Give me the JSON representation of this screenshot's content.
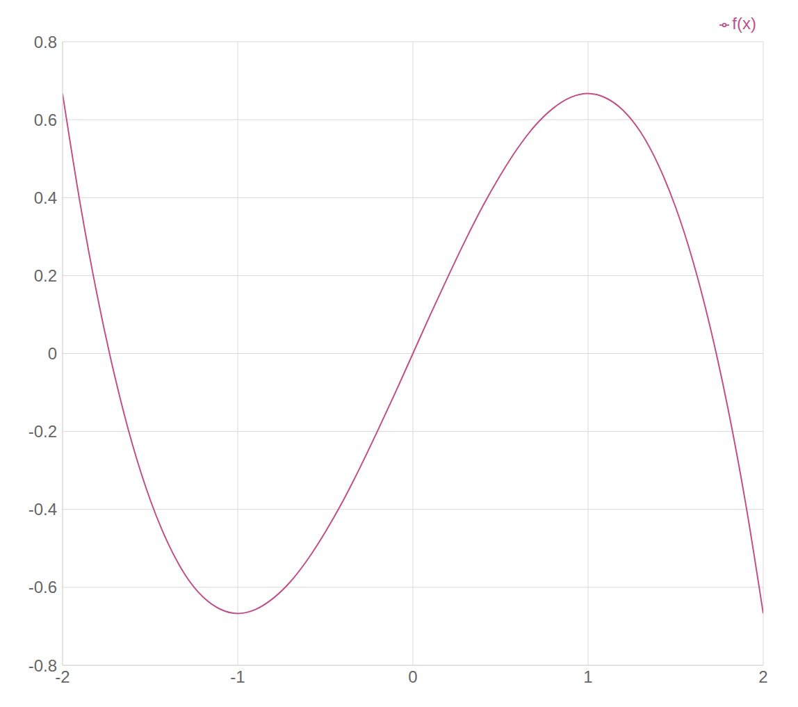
{
  "chart_data": {
    "type": "line",
    "x": [
      -2,
      -1.9,
      -1.8,
      -1.7,
      -1.6,
      -1.5,
      -1.4,
      -1.3,
      -1.2,
      -1.1,
      -1,
      -0.9,
      -0.8,
      -0.7,
      -0.6,
      -0.5,
      -0.4,
      -0.3,
      -0.2,
      -0.1,
      0,
      0.1,
      0.2,
      0.3,
      0.4,
      0.5,
      0.6,
      0.7,
      0.8,
      0.9,
      1,
      1.1,
      1.2,
      1.3,
      1.4,
      1.5,
      1.6,
      1.7,
      1.8,
      1.9,
      2
    ],
    "series": [
      {
        "name": "f(x)",
        "color": "#c0508a",
        "values": [
          0.667,
          0.386,
          0.144,
          -0.062,
          -0.235,
          -0.375,
          -0.485,
          -0.568,
          -0.624,
          -0.656,
          -0.667,
          -0.657,
          -0.629,
          -0.586,
          -0.528,
          -0.458,
          -0.379,
          -0.291,
          -0.197,
          -0.1,
          0,
          0.1,
          0.197,
          0.291,
          0.379,
          0.458,
          0.528,
          0.586,
          0.629,
          0.657,
          0.667,
          0.656,
          0.624,
          0.568,
          0.485,
          0.375,
          0.235,
          0.062,
          -0.144,
          -0.386,
          -0.667
        ]
      }
    ],
    "xlim": [
      -2,
      2
    ],
    "xticks": [
      -2,
      -1,
      0,
      1,
      2
    ],
    "ylim": [
      -0.8,
      0.8
    ],
    "yticks": [
      -0.8,
      -0.6,
      -0.4,
      -0.2,
      0,
      0.2,
      0.4,
      0.6,
      0.8
    ],
    "grid": true,
    "legend": "top right"
  }
}
